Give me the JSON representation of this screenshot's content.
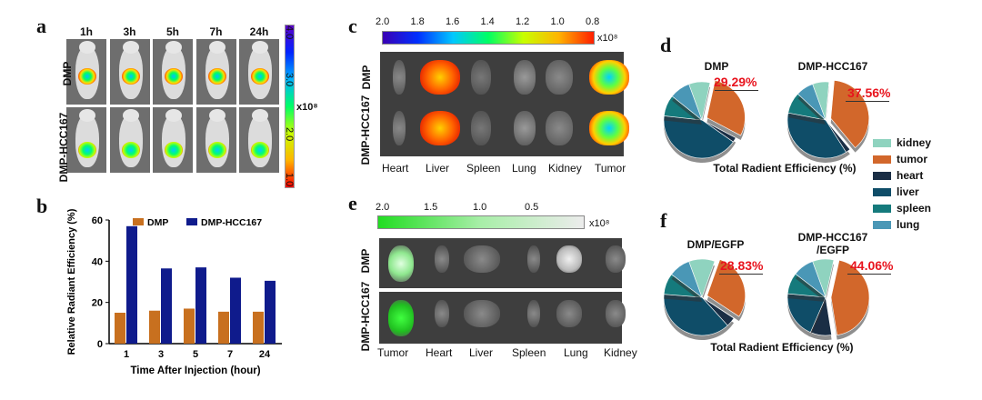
{
  "panel_a": {
    "label": "a",
    "times": [
      "1h",
      "3h",
      "5h",
      "7h",
      "24h"
    ],
    "rows": [
      "DMP",
      "DMP-HCC167"
    ],
    "colorbar": {
      "ticks": [
        "4.0",
        "3.0",
        "2.0",
        "1.0"
      ],
      "unit": "x10⁸"
    }
  },
  "panel_b": {
    "label": "b"
  },
  "panel_c": {
    "label": "c",
    "scale": {
      "ticks": [
        "2.0",
        "1.8",
        "1.6",
        "1.4",
        "1.2",
        "1.0",
        "0.8"
      ],
      "unit": "x10⁸"
    },
    "rows": [
      "DMP",
      "DMP-HCC167"
    ],
    "organs": [
      "Heart",
      "Liver",
      "Spleen",
      "Lung",
      "Kidney",
      "Tumor"
    ]
  },
  "panel_e": {
    "label": "e",
    "scale": {
      "ticks": [
        "2.0",
        "1.5",
        "1.0",
        "0.5"
      ],
      "unit": "x10⁸"
    },
    "rows": [
      "DMP",
      "DMP-HCC167"
    ],
    "organs": [
      "Tumor",
      "Heart",
      "Liver",
      "Spleen",
      "Lung",
      "Kidney"
    ]
  },
  "panel_d": {
    "label": "d",
    "pie1_title": "DMP",
    "pie1_pct": "29.29%",
    "pie2_title": "DMP-HCC167",
    "pie2_pct": "37.56%",
    "caption": "Total Radient Efficiency (%)"
  },
  "panel_f": {
    "label": "f",
    "pie1_title": "DMP/EGFP",
    "pie1_pct": "28.83%",
    "pie2_title": "DMP-HCC167\n/EGFP",
    "pie2_pct": "44.06%",
    "caption": "Total Radient Efficiency (%)"
  },
  "legend": [
    {
      "name": "kidney",
      "color": "#8fd3bf"
    },
    {
      "name": "tumor",
      "color": "#d2672b"
    },
    {
      "name": "heart",
      "color": "#1a2e45"
    },
    {
      "name": "liver",
      "color": "#0f4d68"
    },
    {
      "name": "spleen",
      "color": "#157a7c"
    },
    {
      "name": "lung",
      "color": "#4a97b6"
    }
  ],
  "chart_data": [
    {
      "type": "bar",
      "id": "panel-b",
      "categories": [
        "1",
        "3",
        "5",
        "7",
        "24"
      ],
      "series": [
        {
          "name": "DMP",
          "color": "#c8701f",
          "values": [
            15,
            16,
            17,
            15.5,
            15.5
          ]
        },
        {
          "name": "DMP-HCC167",
          "color": "#0f1b8c",
          "values": [
            57,
            36.5,
            37,
            32,
            30.5
          ]
        }
      ],
      "xlabel": "Time After Injection (hour)",
      "ylabel": "Relative Radiant Efficiency (%)",
      "ylim": [
        0,
        60
      ],
      "yticks": [
        0,
        20,
        40,
        60
      ],
      "legend_position": "top"
    },
    {
      "type": "pie",
      "id": "pie-d1",
      "title": "DMP",
      "labels": [
        "kidney",
        "tumor",
        "heart",
        "liver",
        "spleen",
        "lung"
      ],
      "values": [
        9,
        29.29,
        2,
        42,
        9,
        8.71
      ],
      "highlight": "tumor",
      "highlight_label": "29.29%"
    },
    {
      "type": "pie",
      "id": "pie-d2",
      "title": "DMP-HCC167",
      "labels": [
        "kidney",
        "tumor",
        "heart",
        "liver",
        "spleen",
        "lung"
      ],
      "values": [
        7,
        37.56,
        2,
        37,
        9,
        7.44
      ],
      "highlight": "tumor",
      "highlight_label": "37.56%"
    },
    {
      "type": "pie",
      "id": "pie-f1",
      "title": "DMP/EGFP",
      "labels": [
        "kidney",
        "tumor",
        "heart",
        "liver",
        "spleen",
        "lung"
      ],
      "values": [
        11,
        28.83,
        4,
        38,
        9,
        9.17
      ],
      "highlight": "tumor",
      "highlight_label": "28.83%"
    },
    {
      "type": "pie",
      "id": "pie-f2",
      "title": "DMP-HCC167\n/EGFP",
      "labels": [
        "kidney",
        "tumor",
        "heart",
        "liver",
        "spleen",
        "lung"
      ],
      "values": [
        9,
        44.06,
        9,
        20,
        9,
        8.94
      ],
      "highlight": "tumor",
      "highlight_label": "44.06%"
    }
  ]
}
